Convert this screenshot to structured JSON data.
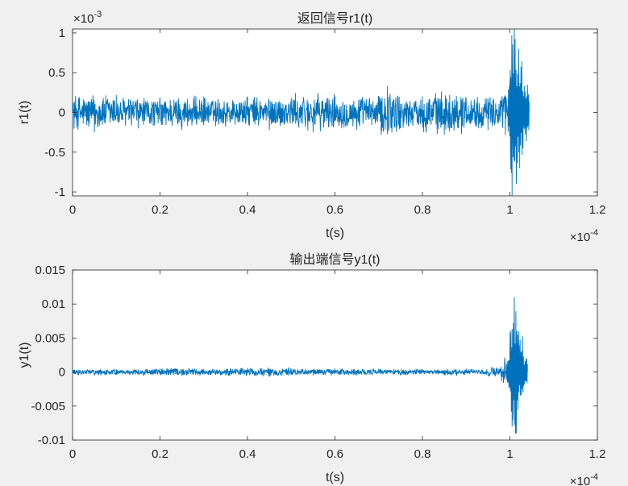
{
  "chart_data": [
    {
      "type": "line",
      "title": "返回信号r1(t)",
      "xlabel": "t(s)",
      "ylabel": "r1(t)",
      "x_multiplier": "×10",
      "x_exponent": "-4",
      "y_multiplier": "×10",
      "y_exponent": "-3",
      "xlim": [
        0,
        1.2
      ],
      "ylim": [
        -1.05,
        1.05
      ],
      "x_ticks": [
        "0",
        "0.2",
        "0.4",
        "0.6",
        "0.8",
        "1",
        "1.2"
      ],
      "y_ticks": [
        "1",
        "0.5",
        "0",
        "-0.5",
        "-1"
      ],
      "grid": false,
      "color": "#0072bd",
      "series": [
        {
          "x": [
            0,
            0.05,
            0.1,
            0.15,
            0.2,
            0.25,
            0.3,
            0.35,
            0.4,
            0.45,
            0.5,
            0.55,
            0.6,
            0.65,
            0.7,
            0.72,
            0.75,
            0.8,
            0.85,
            0.9,
            0.95,
            0.98,
            1.0,
            1.005,
            1.01,
            1.015,
            1.02,
            1.03,
            1.04,
            1.044
          ],
          "y": [
            0.1,
            -0.25,
            0.22,
            -0.2,
            0.18,
            -0.22,
            0.2,
            -0.18,
            0.2,
            -0.22,
            0.18,
            -0.25,
            0.2,
            -0.22,
            0.2,
            0.33,
            -0.2,
            0.2,
            -0.28,
            0.18,
            -0.22,
            0.15,
            0.4,
            -1.05,
            1.05,
            -0.9,
            0.8,
            -0.45,
            0.35,
            0.0
          ]
        }
      ]
    },
    {
      "type": "line",
      "title": "输出端信号y1(t)",
      "xlabel": "t(s)",
      "ylabel": "y1(t)",
      "x_multiplier": "×10",
      "x_exponent": "-4",
      "xlim": [
        0,
        1.2
      ],
      "ylim": [
        -0.01,
        0.015
      ],
      "x_ticks": [
        "0",
        "0.2",
        "0.4",
        "0.6",
        "0.8",
        "1",
        "1.2"
      ],
      "y_ticks": [
        "0.015",
        "0.01",
        "0.005",
        "0",
        "-0.005",
        "-0.01"
      ],
      "grid": false,
      "color": "#0072bd",
      "series": [
        {
          "x": [
            0,
            0.05,
            0.1,
            0.15,
            0.2,
            0.25,
            0.3,
            0.35,
            0.4,
            0.45,
            0.5,
            0.55,
            0.6,
            0.65,
            0.7,
            0.75,
            0.8,
            0.85,
            0.9,
            0.95,
            0.98,
            1.0,
            1.005,
            1.01,
            1.015,
            1.02,
            1.03,
            1.04
          ],
          "y": [
            0.0005,
            -0.0005,
            0.0004,
            -0.0004,
            0.0005,
            -0.0006,
            0.0004,
            -0.0005,
            0.0006,
            -0.0007,
            0.0004,
            -0.0005,
            0.0005,
            -0.0004,
            0.0005,
            -0.0005,
            0.0004,
            -0.0004,
            0.0005,
            -0.0005,
            0.0008,
            0.003,
            -0.008,
            0.011,
            -0.009,
            0.006,
            -0.003,
            0.0
          ]
        }
      ]
    }
  ]
}
